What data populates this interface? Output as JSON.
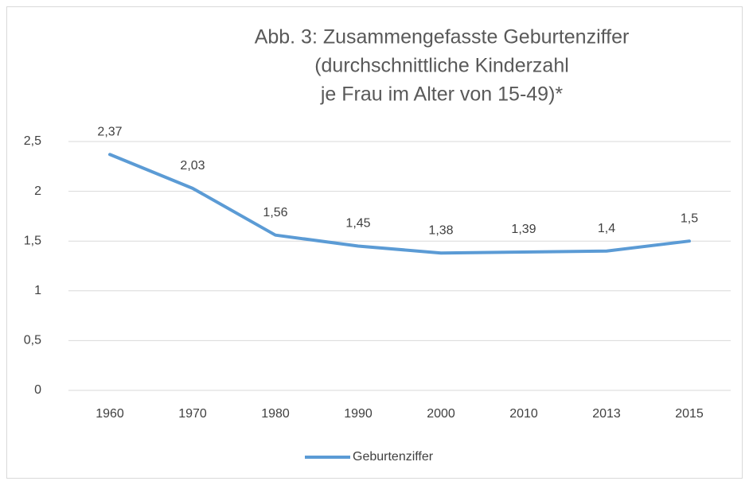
{
  "chart_data": {
    "type": "line",
    "title": [
      "Abb. 3: Zusammengefasste Geburtenziffer",
      "(durchschnittliche Kinderzahl",
      "je Frau im Alter von 15-49)*"
    ],
    "categories": [
      "1960",
      "1970",
      "1980",
      "1990",
      "2000",
      "2010",
      "2013",
      "2015"
    ],
    "series": [
      {
        "name": "Geburtenziffer",
        "color": "#5b9bd5",
        "values": [
          2.37,
          2.03,
          1.56,
          1.45,
          1.38,
          1.39,
          1.4,
          1.5
        ],
        "value_labels": [
          "2,37",
          "2,03",
          "1,56",
          "1,45",
          "1,38",
          "1,39",
          "1,4",
          "1,5"
        ]
      }
    ],
    "ylim": [
      0,
      2.5
    ],
    "yticks": [
      0,
      {
        "value": 0.5,
        "label": "0,5"
      },
      1,
      {
        "value": 1.5,
        "label": "1,5"
      },
      2,
      {
        "value": 2.5,
        "label": "2,5"
      }
    ],
    "grid": true,
    "legend": "bottom"
  }
}
